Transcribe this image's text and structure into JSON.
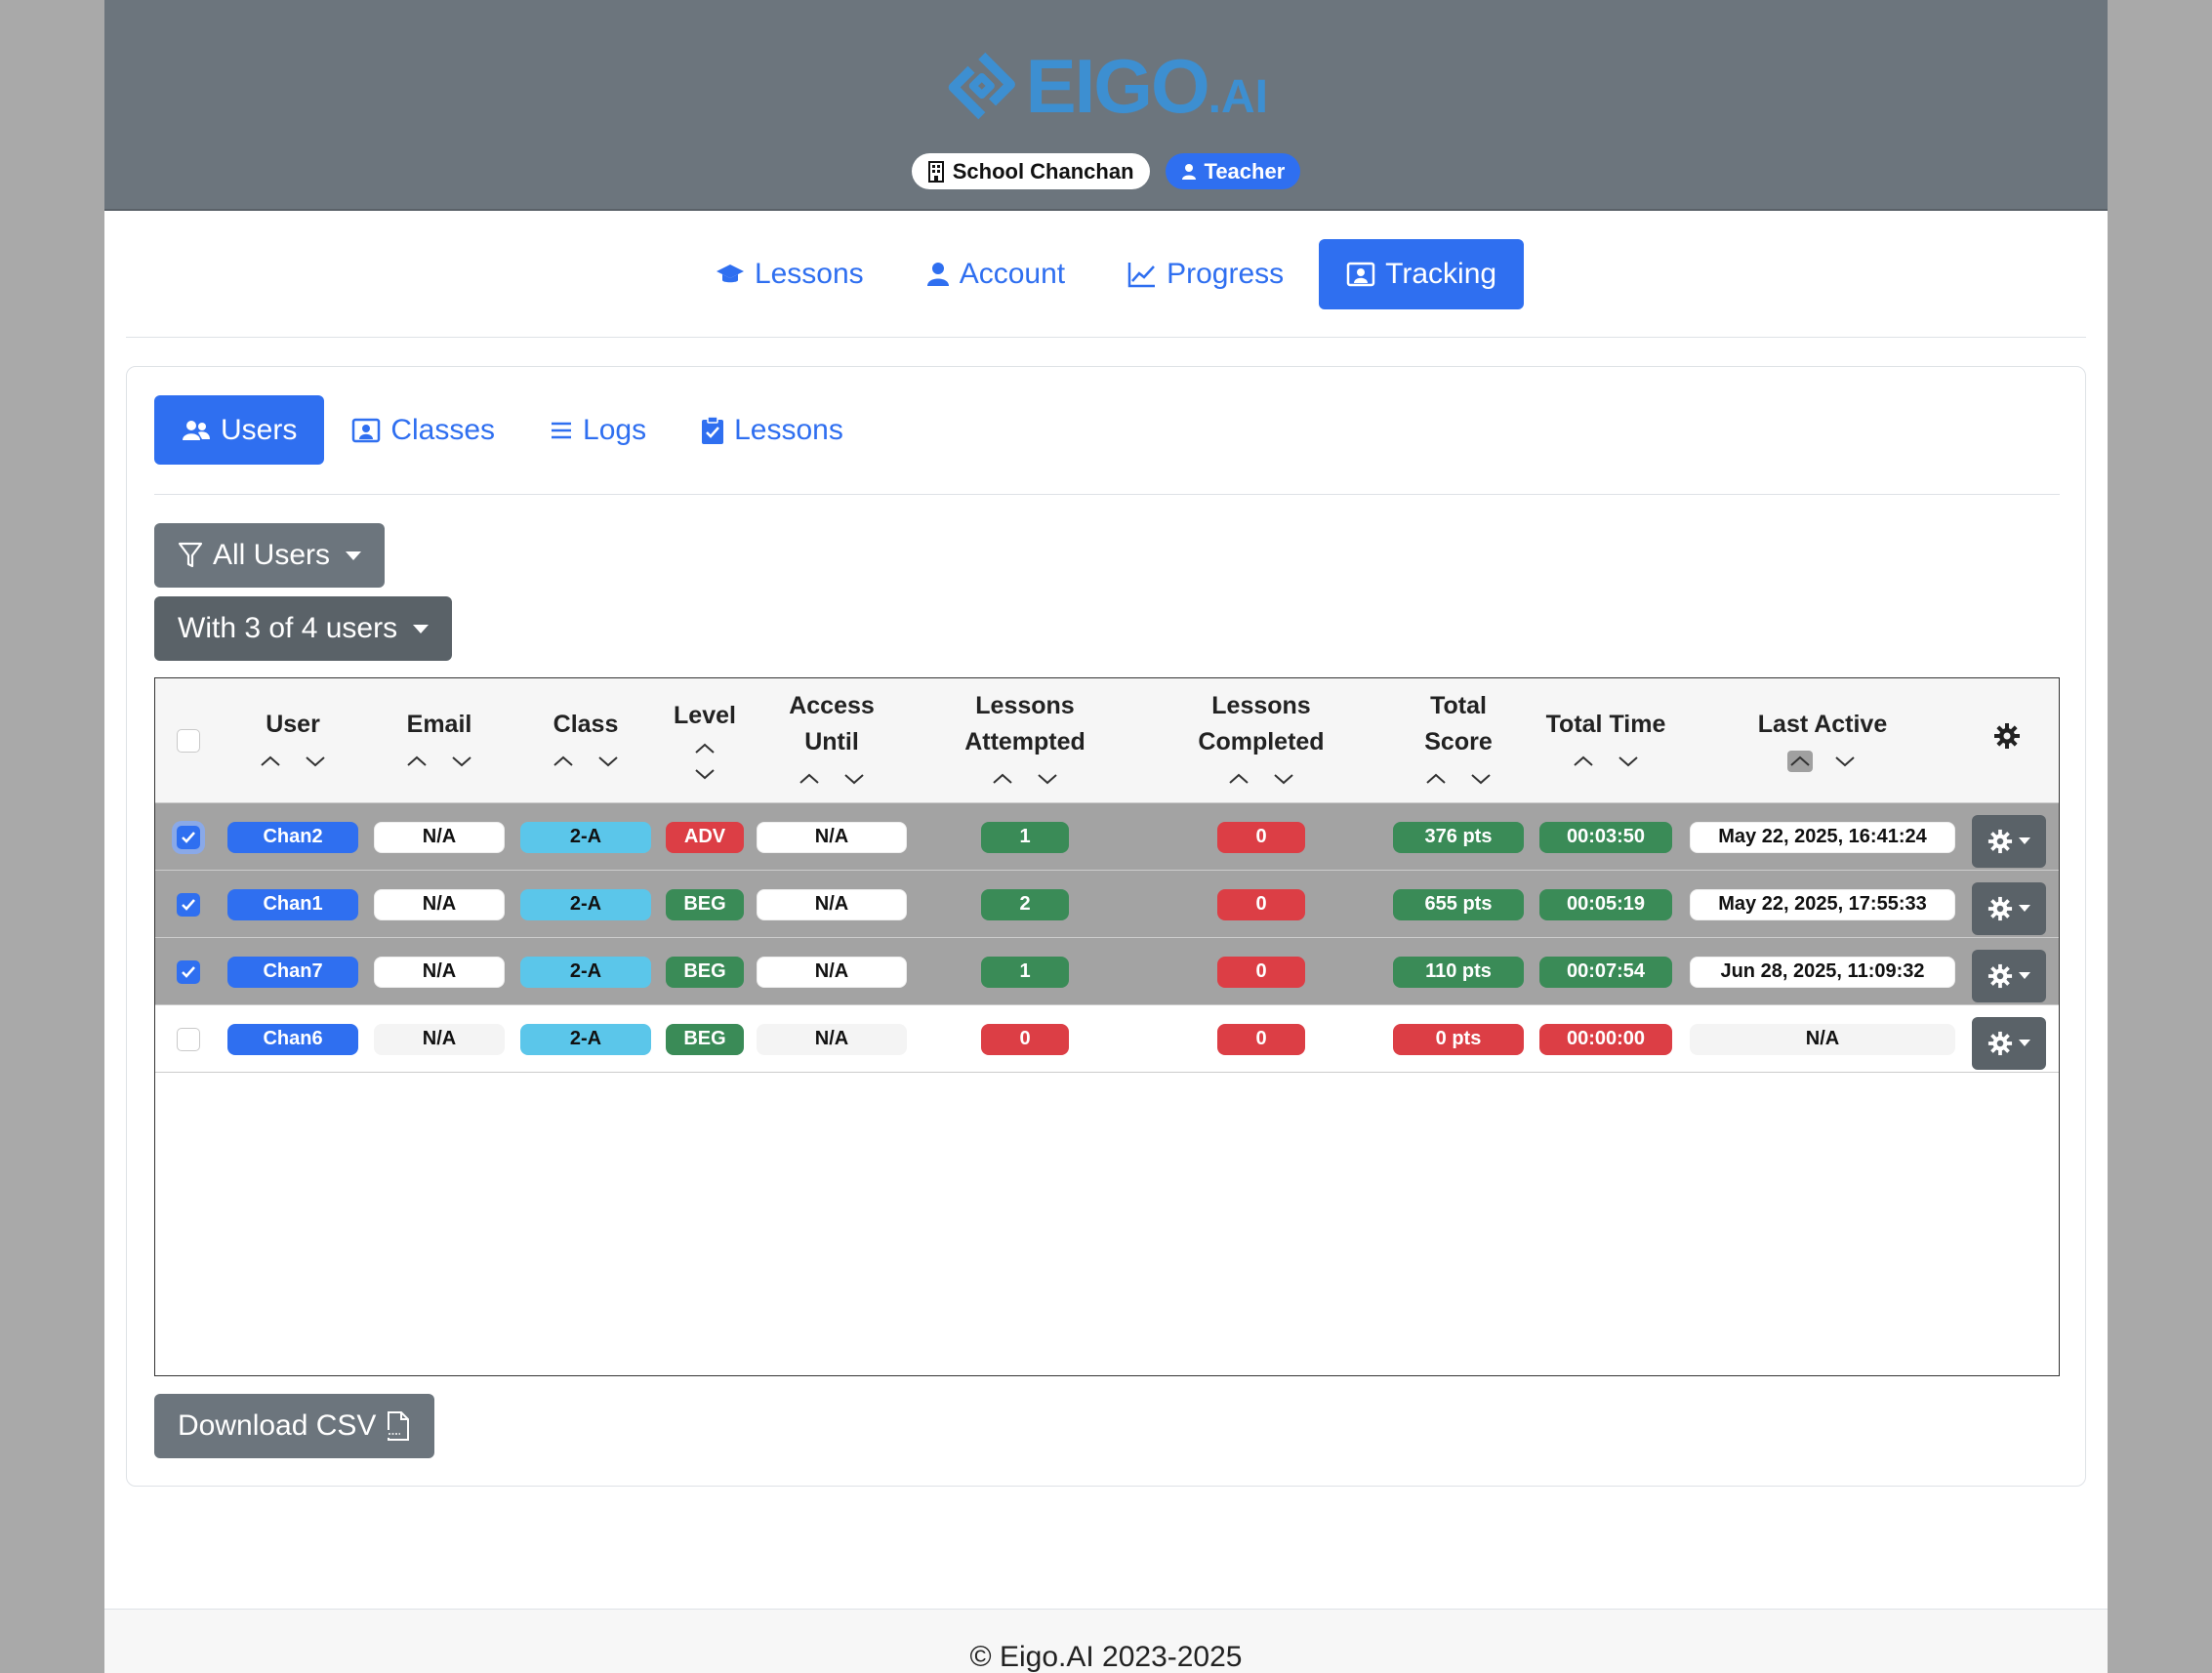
{
  "brand": {
    "logo_text": "EIGO",
    "logo_suffix": ".AI",
    "logo_color": "#3d8fd1"
  },
  "header": {
    "school_label": "School Chanchan",
    "role_label": "Teacher"
  },
  "main_nav": [
    {
      "label": "Lessons",
      "icon": "graduation-cap-icon"
    },
    {
      "label": "Account",
      "icon": "person-icon"
    },
    {
      "label": "Progress",
      "icon": "chart-line-icon"
    },
    {
      "label": "Tracking",
      "icon": "person-badge-icon",
      "active": true
    }
  ],
  "sub_nav": [
    {
      "label": "Users",
      "icon": "people-icon",
      "active": true
    },
    {
      "label": "Classes",
      "icon": "person-badge-icon"
    },
    {
      "label": "Logs",
      "icon": "list-icon"
    },
    {
      "label": "Lessons",
      "icon": "clipboard-check-icon"
    }
  ],
  "filters": {
    "users_filter": "All Users",
    "selection": "With 3 of 4 users"
  },
  "table": {
    "headers": {
      "user": "User",
      "email": "Email",
      "class": "Class",
      "level": "Level",
      "access_1": "Access",
      "access_2": "Until",
      "attempted_1": "Lessons",
      "attempted_2": "Attempted",
      "completed_1": "Lessons",
      "completed_2": "Completed",
      "score_1": "Total",
      "score_2": "Score",
      "time": "Total Time",
      "last_active": "Last Active"
    },
    "active_sort": "last_active_asc",
    "rows": [
      {
        "selected": true,
        "user": "Chan2",
        "email": "N/A",
        "class": "2-A",
        "level": "ADV",
        "access": "N/A",
        "attempted": "1",
        "completed": "0",
        "score": "376 pts",
        "time": "00:03:50",
        "last_active": "May 22, 2025, 16:41:24"
      },
      {
        "selected": true,
        "user": "Chan1",
        "email": "N/A",
        "class": "2-A",
        "level": "BEG",
        "access": "N/A",
        "attempted": "2",
        "completed": "0",
        "score": "655 pts",
        "time": "00:05:19",
        "last_active": "May 22, 2025, 17:55:33"
      },
      {
        "selected": true,
        "user": "Chan7",
        "email": "N/A",
        "class": "2-A",
        "level": "BEG",
        "access": "N/A",
        "attempted": "1",
        "completed": "0",
        "score": "110 pts",
        "time": "00:07:54",
        "last_active": "Jun 28, 2025, 11:09:32"
      },
      {
        "selected": false,
        "user": "Chan6",
        "email": "N/A",
        "class": "2-A",
        "level": "BEG",
        "access": "N/A",
        "attempted": "0",
        "completed": "0",
        "score": "0 pts",
        "time": "00:00:00",
        "last_active": "N/A"
      }
    ]
  },
  "download_label": "Download CSV",
  "footer": "© Eigo.AI 2023-2025",
  "colors": {
    "primary": "#2f6ff0",
    "secondary": "#6c757d",
    "success": "#3a8b57",
    "danger": "#dc3e45",
    "info": "#5bc6ea"
  }
}
